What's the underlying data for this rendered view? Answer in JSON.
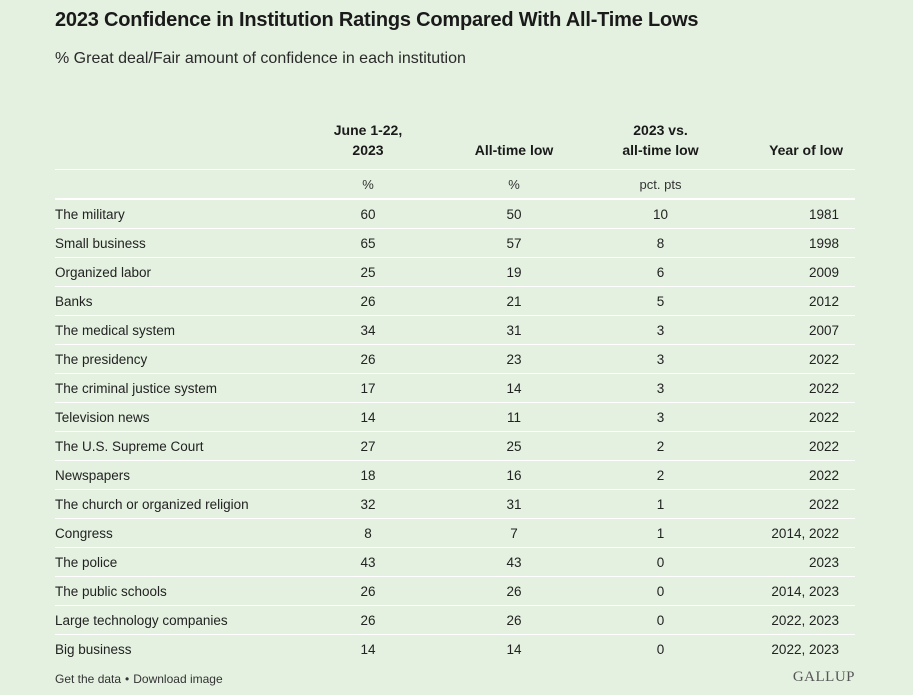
{
  "title": "2023 Confidence in Institution Ratings Compared With All-Time Lows",
  "subtitle": "% Great deal/Fair amount of confidence in each institution",
  "chart_data": {
    "type": "table",
    "title": "2023 Confidence in Institution Ratings Compared With All-Time Lows",
    "subtitle": "% Great deal/Fair amount of confidence in each institution",
    "columns": [
      {
        "label_line1": "",
        "label_line2": "",
        "unit": ""
      },
      {
        "label_line1": "June 1-22,",
        "label_line2": "2023",
        "unit": "%"
      },
      {
        "label_line1": "",
        "label_line2": "All-time low",
        "unit": "%"
      },
      {
        "label_line1": "2023 vs.",
        "label_line2": "all-time low",
        "unit": "pct. pts"
      },
      {
        "label_line1": "",
        "label_line2": "Year of low",
        "unit": ""
      }
    ],
    "rows": [
      {
        "institution": "The military",
        "june_2023": "60",
        "all_time_low": "50",
        "diff": "10",
        "year_of_low": "1981"
      },
      {
        "institution": "Small business",
        "june_2023": "65",
        "all_time_low": "57",
        "diff": "8",
        "year_of_low": "1998"
      },
      {
        "institution": "Organized labor",
        "june_2023": "25",
        "all_time_low": "19",
        "diff": "6",
        "year_of_low": "2009"
      },
      {
        "institution": "Banks",
        "june_2023": "26",
        "all_time_low": "21",
        "diff": "5",
        "year_of_low": "2012"
      },
      {
        "institution": "The medical system",
        "june_2023": "34",
        "all_time_low": "31",
        "diff": "3",
        "year_of_low": "2007"
      },
      {
        "institution": "The presidency",
        "june_2023": "26",
        "all_time_low": "23",
        "diff": "3",
        "year_of_low": "2022"
      },
      {
        "institution": "The criminal justice system",
        "june_2023": "17",
        "all_time_low": "14",
        "diff": "3",
        "year_of_low": "2022"
      },
      {
        "institution": "Television news",
        "june_2023": "14",
        "all_time_low": "11",
        "diff": "3",
        "year_of_low": "2022"
      },
      {
        "institution": "The U.S. Supreme Court",
        "june_2023": "27",
        "all_time_low": "25",
        "diff": "2",
        "year_of_low": "2022"
      },
      {
        "institution": "Newspapers",
        "june_2023": "18",
        "all_time_low": "16",
        "diff": "2",
        "year_of_low": "2022"
      },
      {
        "institution": "The church or organized religion",
        "june_2023": "32",
        "all_time_low": "31",
        "diff": "1",
        "year_of_low": "2022"
      },
      {
        "institution": "Congress",
        "june_2023": "8",
        "all_time_low": "7",
        "diff": "1",
        "year_of_low": "2014, 2022"
      },
      {
        "institution": "The police",
        "june_2023": "43",
        "all_time_low": "43",
        "diff": "0",
        "year_of_low": "2023"
      },
      {
        "institution": "The public schools",
        "june_2023": "26",
        "all_time_low": "26",
        "diff": "0",
        "year_of_low": "2014, 2023"
      },
      {
        "institution": "Large technology companies",
        "june_2023": "26",
        "all_time_low": "26",
        "diff": "0",
        "year_of_low": "2022, 2023"
      },
      {
        "institution": "Big business",
        "june_2023": "14",
        "all_time_low": "14",
        "diff": "0",
        "year_of_low": "2022, 2023"
      }
    ]
  },
  "footer": {
    "get_data": "Get the data",
    "separator": "•",
    "download": "Download image"
  },
  "logo": "GALLUP",
  "colors": {
    "background": "#e4f1e0",
    "rule": "#ffffff",
    "text": "#222222"
  }
}
